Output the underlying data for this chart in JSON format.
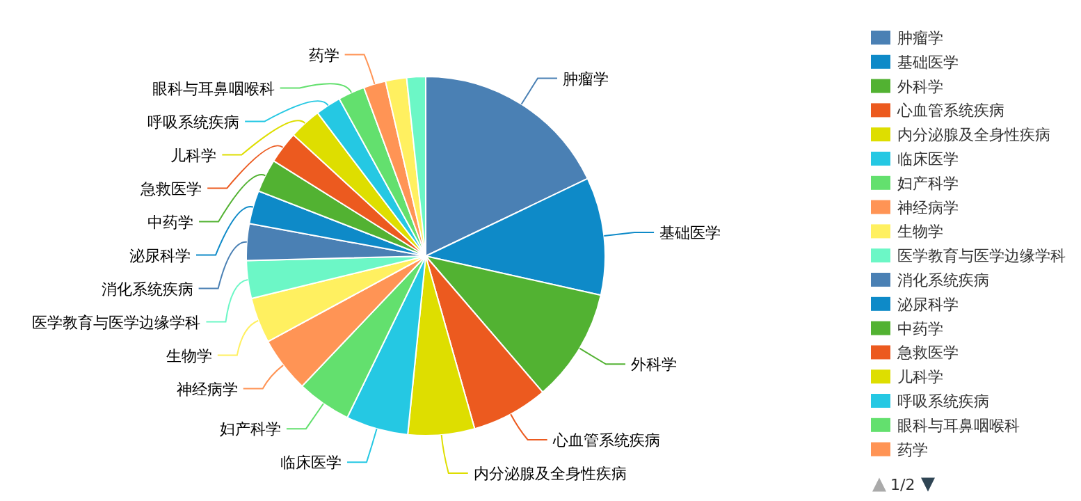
{
  "chart_data": {
    "type": "pie",
    "legend": "right",
    "annotations": [
      "1/2"
    ],
    "categories": [
      "肿瘤学",
      "基础医学",
      "外科学",
      "心血管系统疾病",
      "内分泌腺及全身性疾病",
      "临床医学",
      "妇产科学",
      "神经病学",
      "生物学",
      "医学教育与医学边缘学科",
      "消化系统疾病",
      "泌尿科学",
      "中药学",
      "急救医学",
      "儿科学",
      "呼吸系统疾病",
      "眼科与耳鼻咽喉科",
      "药学",
      null,
      null
    ],
    "values": [
      17.9,
      10.6,
      10.2,
      6.9,
      6.0,
      5.6,
      4.9,
      5.0,
      4.1,
      3.4,
      3.3,
      3.0,
      3.0,
      2.9,
      2.9,
      2.3,
      2.4,
      2.0,
      1.9,
      1.7
    ],
    "colors": [
      "#4a80b4",
      "#0e8ac8",
      "#52b232",
      "#ec5a1f",
      "#dede00",
      "#25c8e3",
      "#63e06e",
      "#ff9455",
      "#fff060",
      "#6cf7c6",
      "#4a80b4",
      "#0e8ac8",
      "#52b232",
      "#ec5a1f",
      "#dede00",
      "#25c8e3",
      "#63e06e",
      "#ff9455",
      "#fff060",
      "#6cf7c6"
    ]
  }
}
